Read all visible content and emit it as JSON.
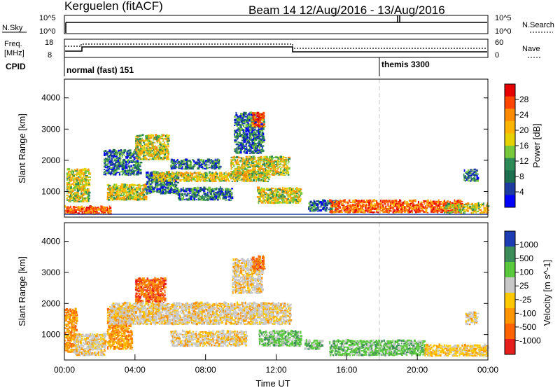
{
  "header": {
    "station": "Kerguelen (fitACF)",
    "beam_info": "Beam 14 12/Aug/2016 - 13/Aug/2016"
  },
  "nsky_panel": {
    "left_label": "N.Sky",
    "right_label": "N.Search",
    "left_ticks": [
      "10^5",
      "10^0"
    ],
    "right_ticks": [
      "10^5",
      "10^0"
    ]
  },
  "freq_panel": {
    "left_label_1": "Freq.",
    "left_label_2": "[MHz]",
    "right_label": "Nave",
    "left_ticks": [
      "18",
      "8"
    ],
    "right_ticks": [
      "60",
      "0"
    ]
  },
  "cpid_panel": {
    "label": "CPID",
    "mode_1": "normal (fast) 151",
    "mode_2": "themis 3300"
  },
  "time_axis": {
    "label": "Time UT",
    "tick_labels": [
      "00:00",
      "04:00",
      "08:00",
      "12:00",
      "16:00",
      "20:00",
      "00:00"
    ]
  },
  "power_colorbar": {
    "label": "Power [dB]",
    "tick_labels": [
      "28",
      "24",
      "20",
      "16",
      "12",
      "8",
      "4"
    ],
    "colors": [
      "#e60000",
      "#ff4500",
      "#ff8c00",
      "#ffb400",
      "#e6d200",
      "#78c83c",
      "#2e8b57",
      "#1e6e50",
      "#1e3ca0",
      "#0000ff"
    ]
  },
  "velocity_colorbar": {
    "label": "Velocity [m s^-1]",
    "tick_labels": [
      "1000",
      "500",
      "100",
      "25",
      "-25",
      "-100",
      "-500",
      "-1000"
    ],
    "colors": [
      "#1e3cb4",
      "#3c8c5a",
      "#5ac83c",
      "#c8c8c8",
      "#ffc800",
      "#ff9600",
      "#ff6400",
      "#e61e1e"
    ]
  },
  "chart_data": [
    {
      "type": "heatmap",
      "panel": "power",
      "xlabel": "Time UT",
      "ylabel": "Slant Range [km]",
      "xlim": [
        0,
        24
      ],
      "ylim": [
        180,
        4600
      ],
      "ytick_values": [
        1000,
        2000,
        3000,
        4000
      ],
      "y_tick_labels": [
        "1000",
        "2000",
        "3000",
        "4000"
      ],
      "colorbar_label": "Power [dB]",
      "colorbar_ticks": [
        28,
        24,
        20,
        16,
        12,
        8,
        4
      ],
      "echo_regions": [
        {
          "t0": 0.0,
          "t1": 2.6,
          "r0": 250,
          "r1": 500,
          "level": "high"
        },
        {
          "t0": 0.1,
          "t1": 1.4,
          "r0": 650,
          "r1": 1700,
          "level": "mid"
        },
        {
          "t0": 2.4,
          "t1": 4.6,
          "r0": 700,
          "r1": 1200,
          "level": "mid"
        },
        {
          "t0": 2.2,
          "t1": 4.3,
          "r0": 1500,
          "r1": 2300,
          "level": "low"
        },
        {
          "t0": 4.0,
          "t1": 5.9,
          "r0": 2000,
          "r1": 2800,
          "level": "mid"
        },
        {
          "t0": 4.6,
          "t1": 6.4,
          "r0": 900,
          "r1": 1600,
          "level": "low"
        },
        {
          "t0": 5.0,
          "t1": 11.6,
          "r0": 1300,
          "r1": 1600,
          "level": "mid"
        },
        {
          "t0": 6.4,
          "t1": 9.5,
          "r0": 700,
          "r1": 1100,
          "level": "low"
        },
        {
          "t0": 6.0,
          "t1": 8.8,
          "r0": 1700,
          "r1": 2000,
          "level": "low"
        },
        {
          "t0": 9.6,
          "t1": 11.3,
          "r0": 2200,
          "r1": 3500,
          "level": "low"
        },
        {
          "t0": 9.4,
          "t1": 12.7,
          "r0": 1500,
          "r1": 2100,
          "level": "mid"
        },
        {
          "t0": 10.6,
          "t1": 11.3,
          "r0": 3050,
          "r1": 3500,
          "level": "high"
        },
        {
          "t0": 10.9,
          "t1": 13.4,
          "r0": 600,
          "r1": 1100,
          "level": "mid"
        },
        {
          "t0": 13.8,
          "t1": 15.5,
          "r0": 350,
          "r1": 700,
          "level": "low"
        },
        {
          "t0": 15.0,
          "t1": 22.5,
          "r0": 300,
          "r1": 700,
          "level": "high"
        },
        {
          "t0": 21.5,
          "t1": 24.0,
          "r0": 280,
          "r1": 600,
          "level": "mid"
        },
        {
          "t0": 22.6,
          "t1": 23.4,
          "r0": 1300,
          "r1": 1700,
          "level": "low"
        }
      ]
    },
    {
      "type": "heatmap",
      "panel": "velocity",
      "xlabel": "Time UT",
      "ylabel": "Slant Range [km]",
      "xlim": [
        0,
        24
      ],
      "ylim": [
        180,
        4600
      ],
      "ytick_values": [
        1000,
        2000,
        3000,
        4000
      ],
      "y_tick_labels": [
        "1000",
        "2000",
        "3000",
        "4000"
      ],
      "colorbar_label": "Velocity [m s^-1]",
      "colorbar_ticks": [
        1000,
        500,
        100,
        25,
        -25,
        -100,
        -500,
        -1000
      ],
      "echo_regions": [
        {
          "t0": 0.0,
          "t1": 0.7,
          "r0": 400,
          "r1": 1800,
          "level": "neg-mid"
        },
        {
          "t0": 0.5,
          "t1": 2.3,
          "r0": 300,
          "r1": 1000,
          "level": "grey"
        },
        {
          "t0": 2.4,
          "t1": 3.8,
          "r0": 500,
          "r1": 1800,
          "level": "neg-mid"
        },
        {
          "t0": 4.0,
          "t1": 5.7,
          "r0": 2000,
          "r1": 2800,
          "level": "neg-high"
        },
        {
          "t0": 2.5,
          "t1": 12.8,
          "r0": 1300,
          "r1": 2000,
          "level": "grey"
        },
        {
          "t0": 6.0,
          "t1": 10.3,
          "r0": 600,
          "r1": 1100,
          "level": "grey"
        },
        {
          "t0": 9.5,
          "t1": 11.2,
          "r0": 2300,
          "r1": 3400,
          "level": "grey"
        },
        {
          "t0": 10.6,
          "t1": 11.3,
          "r0": 3050,
          "r1": 3500,
          "level": "neg-high"
        },
        {
          "t0": 11.0,
          "t1": 13.4,
          "r0": 600,
          "r1": 1100,
          "level": "pos-low"
        },
        {
          "t0": 13.6,
          "t1": 14.6,
          "r0": 500,
          "r1": 800,
          "level": "pos-low"
        },
        {
          "t0": 15.0,
          "t1": 20.4,
          "r0": 300,
          "r1": 800,
          "level": "pos-low"
        },
        {
          "t0": 20.4,
          "t1": 24.0,
          "r0": 280,
          "r1": 650,
          "level": "neg-low"
        },
        {
          "t0": 22.7,
          "t1": 23.4,
          "r0": 1300,
          "r1": 1700,
          "level": "grey"
        }
      ]
    },
    {
      "type": "line",
      "panel": "nsky_nsearch",
      "series": [
        {
          "name": "N.Sky",
          "x": [
            0,
            0.05,
            0.1,
            24
          ],
          "values": [
            0,
            4.7,
            4.7,
            4.7
          ]
        },
        {
          "name": "N.Search",
          "x": [
            0,
            18.9,
            18.9,
            19.0,
            19.0,
            24
          ],
          "values": [
            4.7,
            4.7,
            5.0,
            5.0,
            4.7,
            4.7
          ]
        }
      ]
    },
    {
      "type": "line",
      "panel": "freq_nave",
      "series": [
        {
          "name": "Freq. [MHz]",
          "x": [
            0,
            1.0,
            1.0,
            13.0,
            13.0,
            24
          ],
          "values": [
            10,
            10,
            13,
            13,
            11,
            11
          ]
        },
        {
          "name": "Nave",
          "x": [
            0,
            24
          ],
          "values": [
            28,
            28
          ]
        }
      ]
    },
    {
      "type": "table",
      "panel": "cpid",
      "segments": [
        {
          "start": 0,
          "end": 18,
          "mode": "normal (fast) 151"
        },
        {
          "start": 18,
          "end": 24,
          "mode": "themis 3300"
        }
      ]
    }
  ]
}
